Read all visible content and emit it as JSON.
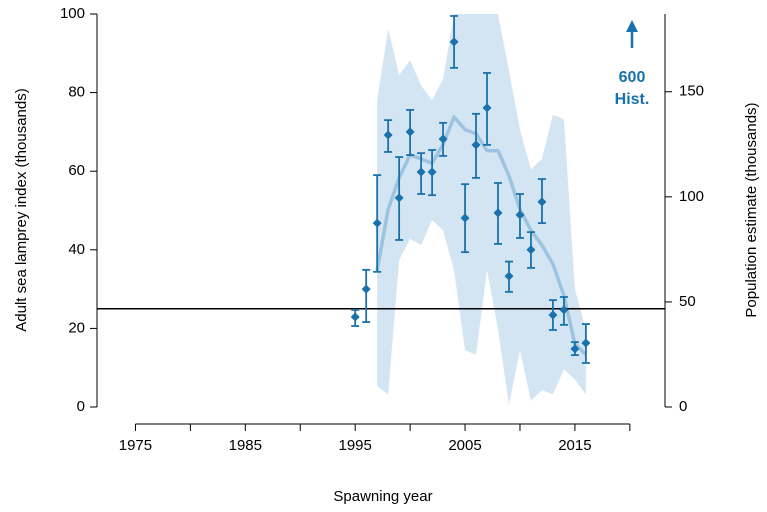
{
  "chart_data": {
    "type": "line",
    "xlabel": "Spawning year",
    "ylabel": "Adult sea lamprey index  (thousands)",
    "y2label": "Population estimate  (thousands)",
    "xlim": [
      1971.5,
      2023.2
    ],
    "xticks": [
      1975,
      1985,
      1995,
      2005,
      2015
    ],
    "xminorticks": [
      1980,
      1990,
      2000,
      2010,
      2020
    ],
    "ylim": [
      0,
      100
    ],
    "yticks": [
      0,
      20,
      40,
      60,
      80,
      100
    ],
    "y2lim": [
      0,
      187
    ],
    "y2ticks": [
      0,
      50,
      100,
      150
    ],
    "target": 25,
    "annotation": [
      "600",
      "Hist."
    ],
    "series": [
      {
        "color": "#1a72ac",
        "x": [
          1995,
          1996,
          1997,
          1998,
          1999,
          2000,
          2001,
          2002,
          2003,
          2004,
          2005,
          2006,
          2007,
          2008,
          2009,
          2010,
          2011,
          2012,
          2013,
          2014,
          2015,
          2016
        ],
        "values": [
          22.9,
          30.0,
          46.8,
          69.2,
          53.2,
          70.0,
          59.8,
          59.8,
          68.2,
          92.9,
          48.1,
          66.7,
          76.1,
          49.4,
          33.3,
          48.9,
          40.0,
          52.2,
          23.4,
          24.7,
          14.8,
          16.3
        ],
        "lower": [
          20.6,
          21.6,
          34.4,
          64.9,
          42.5,
          64.1,
          54.2,
          53.9,
          63.9,
          86.3,
          39.4,
          58.3,
          66.7,
          41.5,
          29.3,
          43.0,
          35.4,
          46.8,
          19.6,
          20.9,
          13.2,
          11.2
        ],
        "upper": [
          24.7,
          34.9,
          59.0,
          73.0,
          63.6,
          75.6,
          64.6,
          65.4,
          72.3,
          99.5,
          56.7,
          74.6,
          85.0,
          57.0,
          37.0,
          54.2,
          44.5,
          58.0,
          27.2,
          28.0,
          16.5,
          21.1
        ]
      },
      {
        "axis": "y2",
        "color": "#9cc3e0",
        "band_color": "#d3e5f3",
        "x": [
          1997,
          1998,
          1999,
          2000,
          2001,
          2002,
          2003,
          2004,
          2005,
          2006,
          2007,
          2008,
          2009,
          2010,
          2011,
          2012,
          2013,
          2014,
          2015,
          2016
        ],
        "values": [
          65,
          94,
          109,
          120,
          118,
          116,
          125,
          138,
          132,
          130,
          122,
          122,
          110,
          94,
          84,
          77,
          68,
          53,
          30,
          25
        ],
        "lower": [
          10,
          6,
          70,
          80,
          77,
          89,
          84,
          65,
          27,
          25,
          65,
          37,
          1,
          27,
          3,
          8,
          6,
          18,
          13,
          6
        ],
        "upper": [
          146,
          180,
          158,
          165,
          153,
          146,
          156,
          187,
          187,
          187,
          187,
          187,
          160,
          132,
          113,
          118,
          139,
          137,
          56,
          37
        ]
      }
    ]
  }
}
